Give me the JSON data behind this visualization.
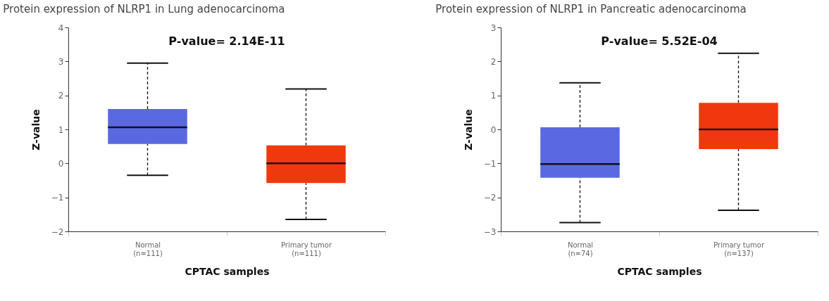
{
  "chart_data": [
    {
      "type": "box",
      "title": "Protein expression of NLRP1 in Lung adenocarcinoma",
      "xlabel": "CPTAC samples",
      "ylabel": "Z-value",
      "categories": [
        "Normal\n(n=111)",
        "Primary tumor\n(n=111)"
      ],
      "colors": [
        "#5a69e2",
        "#f0380f"
      ],
      "boxes": [
        {
          "low": -0.35,
          "q1": 0.57,
          "median": 1.06,
          "q3": 1.6,
          "high": 2.95
        },
        {
          "low": -1.65,
          "q1": -0.58,
          "median": 0,
          "q3": 0.53,
          "high": 2.19
        }
      ],
      "ylim": [
        -2,
        4
      ],
      "yticks": [
        -2,
        -1,
        0,
        1,
        2,
        3,
        4
      ],
      "annotations": [
        "P-value= 2.14E-11"
      ]
    },
    {
      "type": "box",
      "title": "Protein expression of NLRP1 in Pancreatic adenocarcinoma",
      "xlabel": "CPTAC samples",
      "ylabel": "Z-value",
      "categories": [
        "Normal\n(n=74)",
        "Primary tumor\n(n=137)"
      ],
      "colors": [
        "#5a69e2",
        "#f0380f"
      ],
      "boxes": [
        {
          "low": -2.74,
          "q1": -1.42,
          "median": -1.02,
          "q3": 0.06,
          "high": 1.37
        },
        {
          "low": -2.38,
          "q1": -0.58,
          "median": 0,
          "q3": 0.78,
          "high": 2.24
        }
      ],
      "ylim": [
        -3,
        3
      ],
      "yticks": [
        -3,
        -2,
        -1,
        0,
        1,
        2,
        3
      ],
      "annotations": [
        "P-value= 5.52E-04"
      ]
    }
  ]
}
